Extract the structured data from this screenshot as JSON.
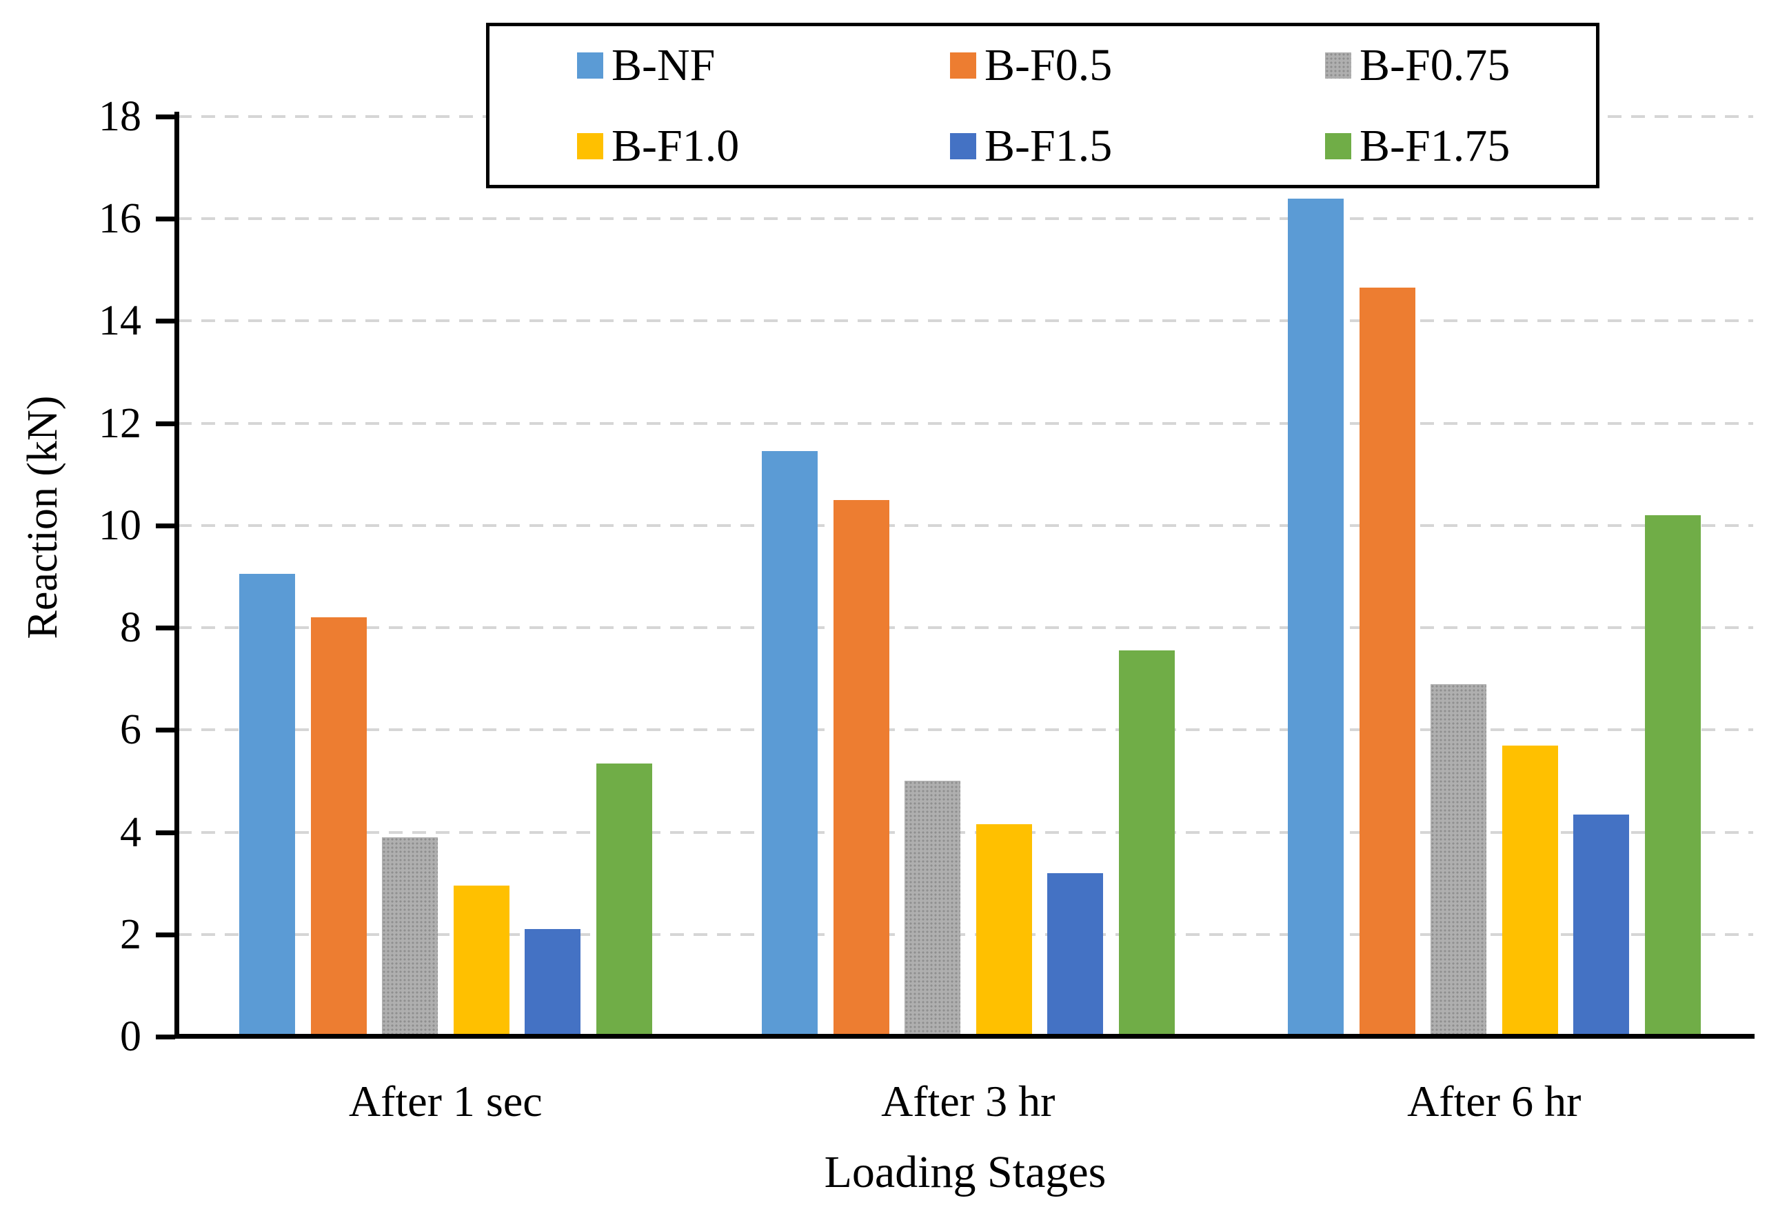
{
  "chart_data": {
    "type": "bar",
    "title": "",
    "xlabel": "Loading Stages",
    "ylabel": "Reaction (kN)",
    "categories": [
      "After 1 sec",
      "After 3 hr",
      "After 6 hr"
    ],
    "series": [
      {
        "name": "B-NF",
        "color": "#5B9BD5",
        "pattern": "solid",
        "values": [
          9.05,
          11.45,
          16.4
        ]
      },
      {
        "name": "B-F0.5",
        "color": "#ED7D31",
        "pattern": "solid",
        "values": [
          8.2,
          10.5,
          14.65
        ]
      },
      {
        "name": "B-F0.75",
        "color": "#AFAFAF",
        "pattern": "dots",
        "values": [
          3.9,
          5.0,
          6.9
        ]
      },
      {
        "name": "B-F1.0",
        "color": "#FFC000",
        "pattern": "solid",
        "values": [
          2.95,
          4.15,
          5.7
        ]
      },
      {
        "name": "B-F1.5",
        "color": "#4472C4",
        "pattern": "solid",
        "values": [
          2.1,
          3.2,
          4.35
        ]
      },
      {
        "name": "B-F1.75",
        "color": "#70AD47",
        "pattern": "solid",
        "values": [
          5.35,
          7.55,
          10.2
        ]
      }
    ],
    "ylim": [
      0,
      18
    ],
    "ytick_step": 2,
    "grid": "horizontal-dashed",
    "gridline_color": "#D6D6D6",
    "axis_color": "#000000",
    "legend_position": "top",
    "legend_rows": 2,
    "legend_columns": 3
  }
}
